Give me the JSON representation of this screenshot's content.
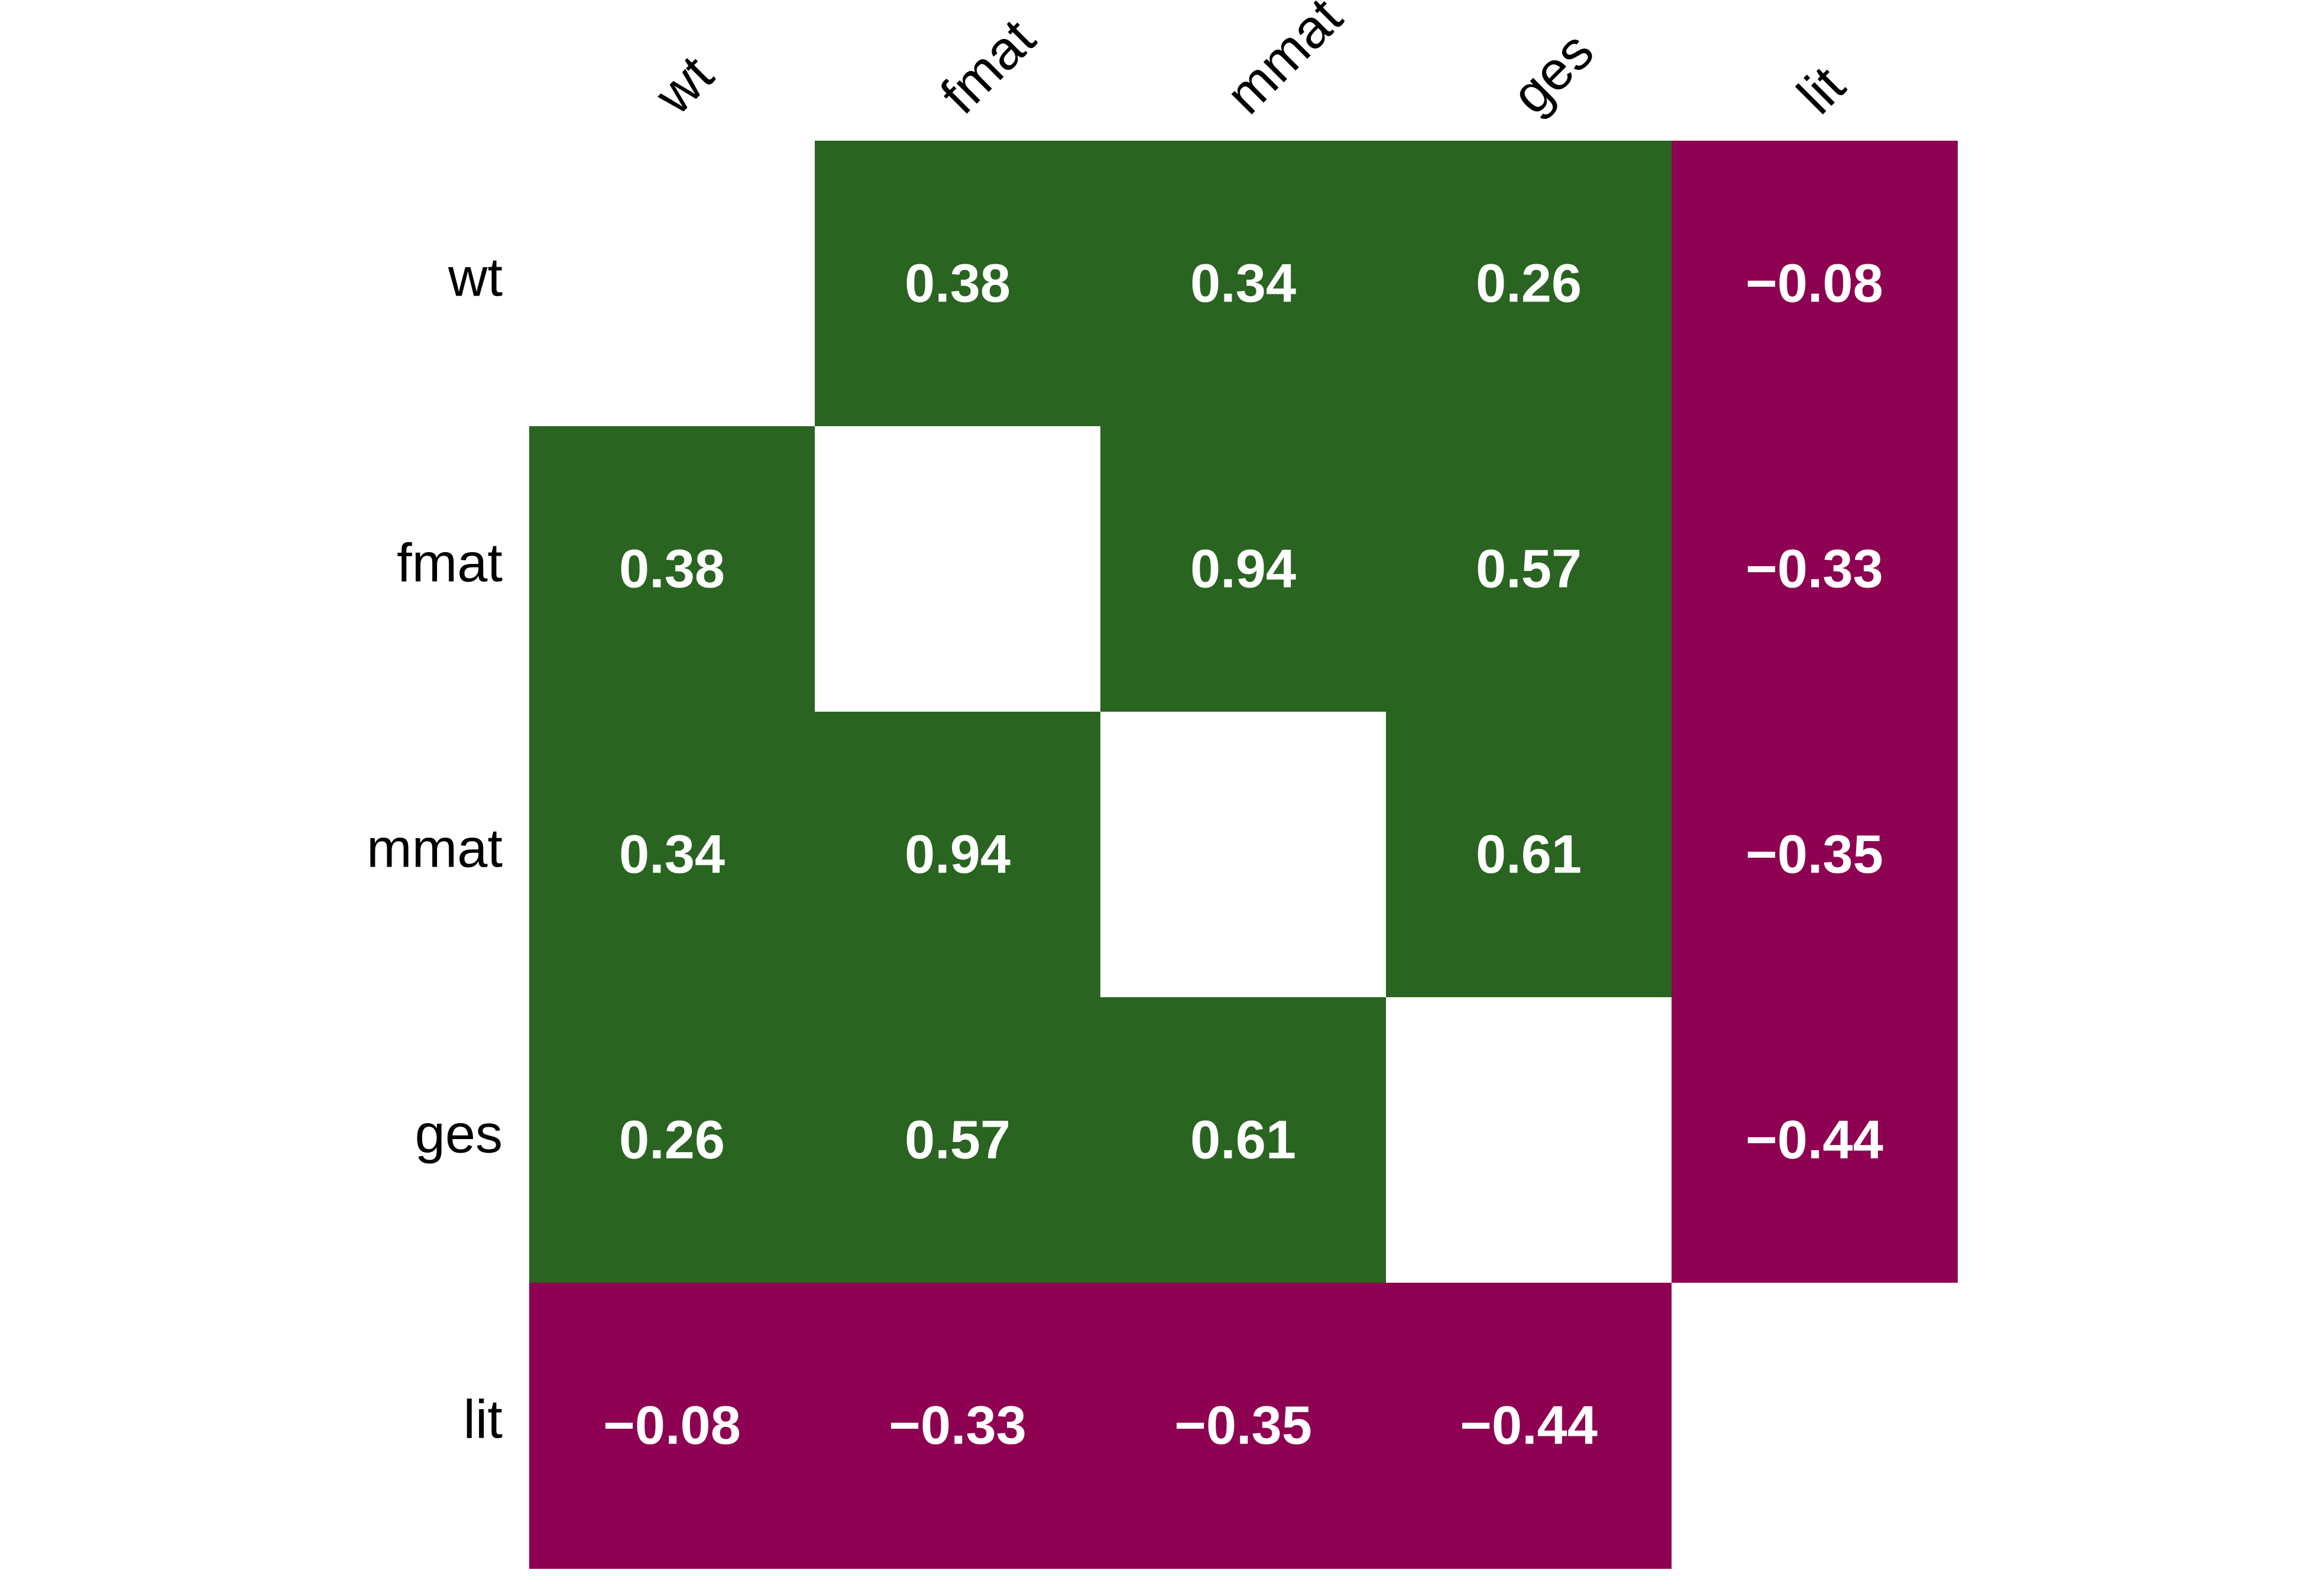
{
  "chart_data": {
    "type": "heatmap",
    "title": "",
    "xlabel": "",
    "ylabel": "",
    "variables": [
      "wt",
      "fmat",
      "mmat",
      "ges",
      "lit"
    ],
    "x_tick_labels": [
      "wt",
      "fmat",
      "mmat",
      "ges",
      "lit"
    ],
    "y_tick_labels": [
      "wt",
      "fmat",
      "mmat",
      "ges",
      "lit"
    ],
    "matrix": [
      [
        null,
        0.38,
        0.34,
        0.26,
        -0.08
      ],
      [
        0.38,
        null,
        0.94,
        0.57,
        -0.33
      ],
      [
        0.34,
        0.94,
        null,
        0.61,
        -0.35
      ],
      [
        0.26,
        0.57,
        0.61,
        null,
        -0.44
      ],
      [
        -0.08,
        -0.33,
        -0.35,
        -0.44,
        null
      ]
    ],
    "labels": [
      [
        "",
        "0.38",
        "0.34",
        "0.26",
        "−0.08"
      ],
      [
        "0.38",
        "",
        "0.94",
        "0.57",
        "−0.33"
      ],
      [
        "0.34",
        "0.94",
        "",
        "0.61",
        "−0.35"
      ],
      [
        "0.26",
        "0.57",
        "0.61",
        "",
        "−0.44"
      ],
      [
        "−0.08",
        "−0.33",
        "−0.35",
        "−0.44",
        ""
      ]
    ],
    "diagonal_blank": true,
    "colors": {
      "positive": "#296420",
      "negative": "#8e0052",
      "blank": "#ffffff",
      "value_text": "#ffffff",
      "axis_text": "#000000"
    },
    "grid": false,
    "x_labels_position": "top",
    "x_label_rotation_deg": -45
  }
}
